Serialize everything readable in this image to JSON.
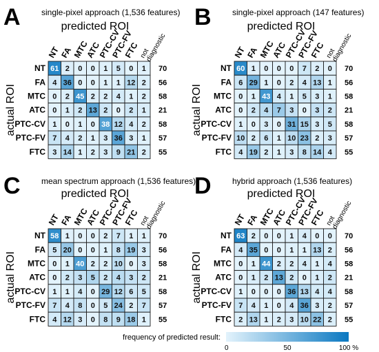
{
  "chart_data": [
    {
      "type": "heatmap",
      "panel": "A",
      "title": "single-pixel approach (1,536 features)",
      "xlabel": "predicted ROI",
      "ylabel": "actual ROI",
      "col_labels": [
        "NT",
        "FA",
        "MTC",
        "ATC",
        "PTC-CV",
        "PTC-FV",
        "FTC",
        "not diagnostic"
      ],
      "row_labels": [
        "NT",
        "FA",
        "MTC",
        "ATC",
        "PTC-CV",
        "PTC-FV",
        "FTC"
      ],
      "values": [
        [
          61,
          2,
          0,
          0,
          1,
          5,
          0,
          1
        ],
        [
          4,
          36,
          0,
          0,
          1,
          1,
          12,
          2
        ],
        [
          0,
          2,
          45,
          2,
          2,
          4,
          1,
          2
        ],
        [
          0,
          1,
          2,
          13,
          2,
          0,
          2,
          1
        ],
        [
          1,
          0,
          1,
          0,
          38,
          12,
          4,
          2
        ],
        [
          7,
          4,
          2,
          1,
          3,
          36,
          3,
          1
        ],
        [
          3,
          14,
          1,
          2,
          3,
          9,
          21,
          2
        ]
      ],
      "row_totals": [
        70,
        56,
        58,
        21,
        58,
        57,
        55
      ]
    },
    {
      "type": "heatmap",
      "panel": "B",
      "title": "single-pixel approach (147 features)",
      "xlabel": "predicted ROI",
      "ylabel": "actual ROI",
      "col_labels": [
        "NT",
        "FA",
        "MTC",
        "ATC",
        "PTC-CV",
        "PTC-FV",
        "FTC",
        "not diagnostic"
      ],
      "row_labels": [
        "NT",
        "FA",
        "MTC",
        "ATC",
        "PTC-CV",
        "PTC-FV",
        "FTC"
      ],
      "values": [
        [
          60,
          1,
          0,
          0,
          0,
          7,
          2,
          0
        ],
        [
          6,
          29,
          1,
          0,
          2,
          4,
          13,
          1
        ],
        [
          0,
          1,
          43,
          4,
          1,
          5,
          3,
          1
        ],
        [
          0,
          2,
          4,
          7,
          3,
          0,
          3,
          2
        ],
        [
          1,
          0,
          3,
          0,
          31,
          15,
          3,
          5
        ],
        [
          10,
          2,
          6,
          1,
          10,
          23,
          2,
          3
        ],
        [
          4,
          19,
          2,
          1,
          3,
          8,
          14,
          4
        ]
      ],
      "row_totals": [
        70,
        56,
        58,
        21,
        58,
        57,
        55
      ]
    },
    {
      "type": "heatmap",
      "panel": "C",
      "title": "mean spectrum approach (1,536 features)",
      "xlabel": "predicted ROI",
      "ylabel": "actual ROI",
      "col_labels": [
        "NT",
        "FA",
        "MTC",
        "ATC",
        "PTC-CV",
        "PTC-FV",
        "FTC",
        "not diagnostic"
      ],
      "row_labels": [
        "NT",
        "FA",
        "MTC",
        "ATC",
        "PTC-CV",
        "PTC-FV",
        "FTC"
      ],
      "values": [
        [
          58,
          1,
          0,
          0,
          2,
          7,
          1,
          1
        ],
        [
          5,
          20,
          0,
          0,
          1,
          8,
          19,
          3
        ],
        [
          0,
          1,
          40,
          2,
          2,
          10,
          0,
          3
        ],
        [
          0,
          2,
          3,
          5,
          2,
          4,
          3,
          2
        ],
        [
          1,
          1,
          4,
          0,
          29,
          12,
          6,
          5
        ],
        [
          7,
          4,
          8,
          0,
          5,
          24,
          2,
          7
        ],
        [
          4,
          12,
          3,
          0,
          8,
          9,
          18,
          1
        ]
      ],
      "row_totals": [
        70,
        56,
        58,
        21,
        58,
        57,
        55
      ]
    },
    {
      "type": "heatmap",
      "panel": "D",
      "title": "hybrid approach (1,536 features)",
      "xlabel": "predicted ROI",
      "ylabel": "actual ROI",
      "col_labels": [
        "NT",
        "FA",
        "MTC",
        "ATC",
        "PTC-CV",
        "PTC-FV",
        "FTC",
        "not diagnostic"
      ],
      "row_labels": [
        "NT",
        "FA",
        "MTC",
        "ATC",
        "PTC-CV",
        "PTC-FV",
        "FTC"
      ],
      "values": [
        [
          63,
          2,
          0,
          0,
          1,
          4,
          0,
          0
        ],
        [
          4,
          35,
          0,
          0,
          1,
          1,
          13,
          2
        ],
        [
          0,
          1,
          44,
          2,
          2,
          4,
          1,
          4
        ],
        [
          0,
          1,
          2,
          13,
          2,
          0,
          1,
          2
        ],
        [
          1,
          0,
          0,
          0,
          36,
          13,
          4,
          4
        ],
        [
          7,
          4,
          1,
          0,
          4,
          36,
          3,
          2
        ],
        [
          2,
          13,
          1,
          2,
          3,
          10,
          22,
          2
        ]
      ],
      "row_totals": [
        70,
        56,
        58,
        21,
        58,
        57,
        55
      ]
    }
  ],
  "legend": {
    "title": "frequency of predicted result:",
    "ticks": [
      "0",
      "50",
      "100 %"
    ],
    "scale_min": 0,
    "scale_max": 100,
    "color_low": "#e3f3fc",
    "color_high": "#0a78c1"
  }
}
